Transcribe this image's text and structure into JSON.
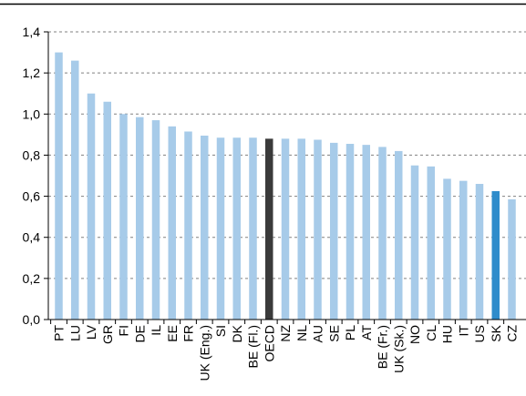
{
  "chart_data": {
    "type": "bar",
    "title": "",
    "xlabel": "",
    "ylabel": "",
    "ylim": [
      0,
      1.4
    ],
    "y_ticks": [
      "0,0",
      "0,2",
      "0,4",
      "0,6",
      "0,8",
      "1,0",
      "1,2",
      "1,4"
    ],
    "grid": "horizontal dashed",
    "categories": [
      "PT",
      "LU",
      "LV",
      "GR",
      "FI",
      "DE",
      "IL",
      "EE",
      "FR",
      "UK (Eng.)",
      "SI",
      "DK",
      "BE (Fl.)",
      "OECD",
      "NZ",
      "NL",
      "AU",
      "SE",
      "PL",
      "AT",
      "BE (Fr.)",
      "UK (Sk.)",
      "NO",
      "CL",
      "HU",
      "IT",
      "US",
      "SK",
      "CZ"
    ],
    "values": [
      1.3,
      1.26,
      1.1,
      1.06,
      1.0,
      0.985,
      0.97,
      0.94,
      0.915,
      0.895,
      0.885,
      0.885,
      0.885,
      0.88,
      0.88,
      0.88,
      0.875,
      0.86,
      0.855,
      0.85,
      0.84,
      0.82,
      0.75,
      0.745,
      0.685,
      0.675,
      0.66,
      0.625,
      0.585
    ],
    "highlight": {
      "OECD": "oecd",
      "SK": "focus"
    },
    "colors": {
      "default": "#a7cbe9",
      "oecd": "#3a3a3a",
      "focus": "#2e8ccb",
      "grid": "#808080",
      "axis": "#000000",
      "top_rule": "#000000"
    }
  }
}
